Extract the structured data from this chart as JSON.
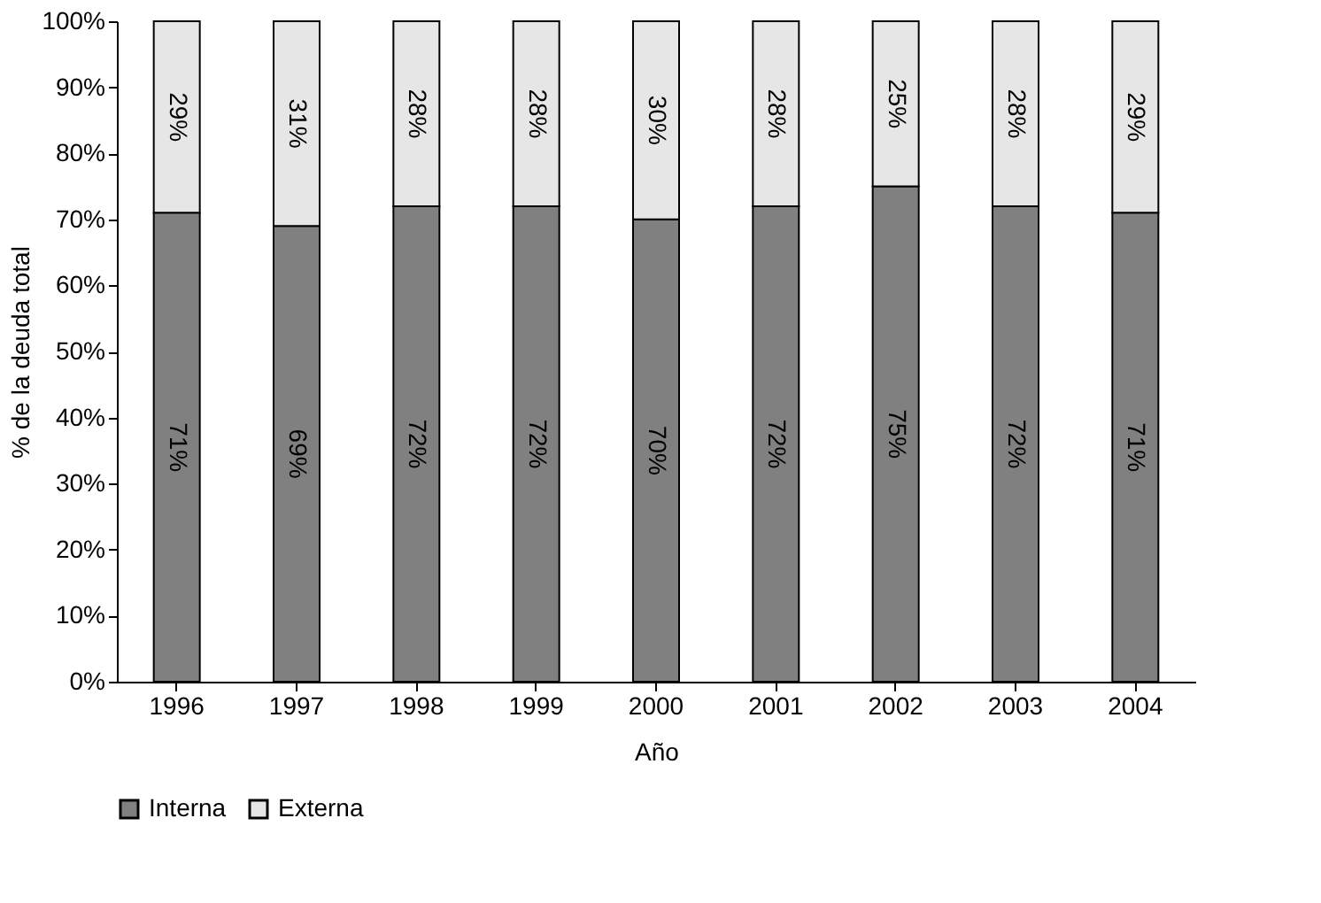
{
  "chart_data": {
    "type": "bar",
    "stacked": true,
    "xlabel": "Año",
    "ylabel": "% de la deuda total",
    "categories": [
      "1996",
      "1997",
      "1998",
      "1999",
      "2000",
      "2001",
      "2002",
      "2003",
      "2004"
    ],
    "series": [
      {
        "name": "Interna",
        "color": "#808080",
        "values": [
          71,
          69,
          72,
          72,
          70,
          72,
          75,
          72,
          71
        ],
        "value_labels": [
          "71%",
          "69%",
          "72%",
          "72%",
          "70%",
          "72%",
          "75%",
          "72%",
          "71%"
        ]
      },
      {
        "name": "Externa",
        "color": "#e6e6e6",
        "values": [
          29,
          31,
          28,
          28,
          30,
          28,
          25,
          28,
          29
        ],
        "value_labels": [
          "29%",
          "31%",
          "28%",
          "28%",
          "30%",
          "28%",
          "25%",
          "28%",
          "29%"
        ]
      }
    ],
    "ylim": [
      0,
      100
    ],
    "yticks": [
      {
        "value": 0,
        "label": "0%"
      },
      {
        "value": 10,
        "label": "10%"
      },
      {
        "value": 20,
        "label": "20%"
      },
      {
        "value": 30,
        "label": "30%"
      },
      {
        "value": 40,
        "label": "40%"
      },
      {
        "value": 50,
        "label": "50%"
      },
      {
        "value": 60,
        "label": "60%"
      },
      {
        "value": 70,
        "label": "70%"
      },
      {
        "value": 80,
        "label": "80%"
      },
      {
        "value": 90,
        "label": "90%"
      },
      {
        "value": 100,
        "label": "100%"
      }
    ],
    "legend": "bottom",
    "grid": false
  }
}
